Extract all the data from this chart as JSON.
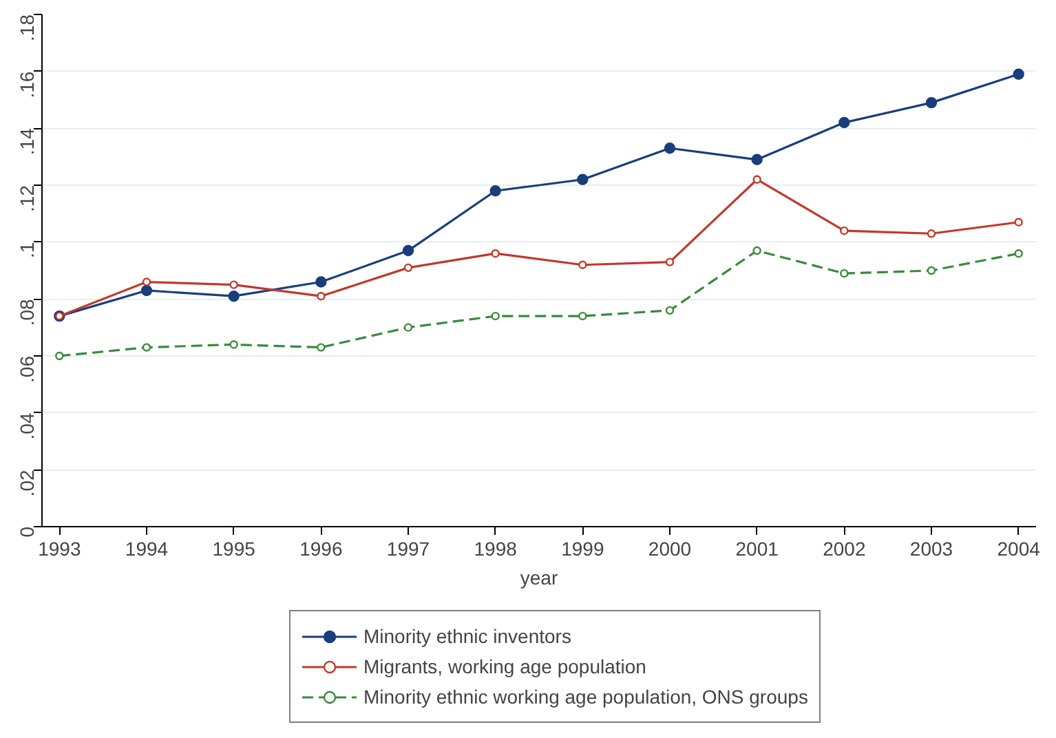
{
  "chart_data": {
    "type": "line",
    "xlabel": "year",
    "x": [
      1993,
      1994,
      1995,
      1996,
      1997,
      1998,
      1999,
      2000,
      2001,
      2002,
      2003,
      2004
    ],
    "series": [
      {
        "name": "Minority ethnic inventors",
        "color": "#1a3d7c",
        "values": [
          0.074,
          0.083,
          0.081,
          0.086,
          0.097,
          0.118,
          0.122,
          0.133,
          0.129,
          0.142,
          0.149,
          0.159
        ],
        "marker": "circle",
        "line_style": "solid"
      },
      {
        "name": "Migrants, working age population",
        "color": "#c0392b",
        "values": [
          0.074,
          0.086,
          0.085,
          0.081,
          0.091,
          0.096,
          0.092,
          0.093,
          0.122,
          0.104,
          0.103,
          0.107
        ],
        "marker": "circle",
        "line_style": "solid"
      },
      {
        "name": "Minority ethnic working age population, ONS groups",
        "color": "#3a8a3a",
        "values": [
          0.06,
          0.063,
          0.064,
          0.063,
          0.07,
          0.074,
          0.074,
          0.076,
          0.097,
          0.089,
          0.09,
          0.096
        ],
        "marker": "circle",
        "line_style": "dashed"
      }
    ],
    "xlim": [
      1992.8,
      2004.2
    ],
    "ylim": [
      0,
      0.18
    ],
    "xticks": [
      1993,
      1994,
      1995,
      1996,
      1997,
      1998,
      1999,
      2000,
      2001,
      2002,
      2003,
      2004
    ],
    "yticks": [
      {
        "value": 0,
        "label": "0"
      },
      {
        "value": 0.02,
        "label": ".02"
      },
      {
        "value": 0.04,
        "label": ".04"
      },
      {
        "value": 0.06,
        "label": ".06"
      },
      {
        "value": 0.08,
        "label": ".08"
      },
      {
        "value": 0.1,
        "label": ".1"
      },
      {
        "value": 0.12,
        "label": ".12"
      },
      {
        "value": 0.14,
        "label": ".14"
      },
      {
        "value": 0.16,
        "label": ".16"
      },
      {
        "value": 0.18,
        "label": ".18"
      }
    ],
    "grid": "y",
    "legend": "bottom"
  }
}
